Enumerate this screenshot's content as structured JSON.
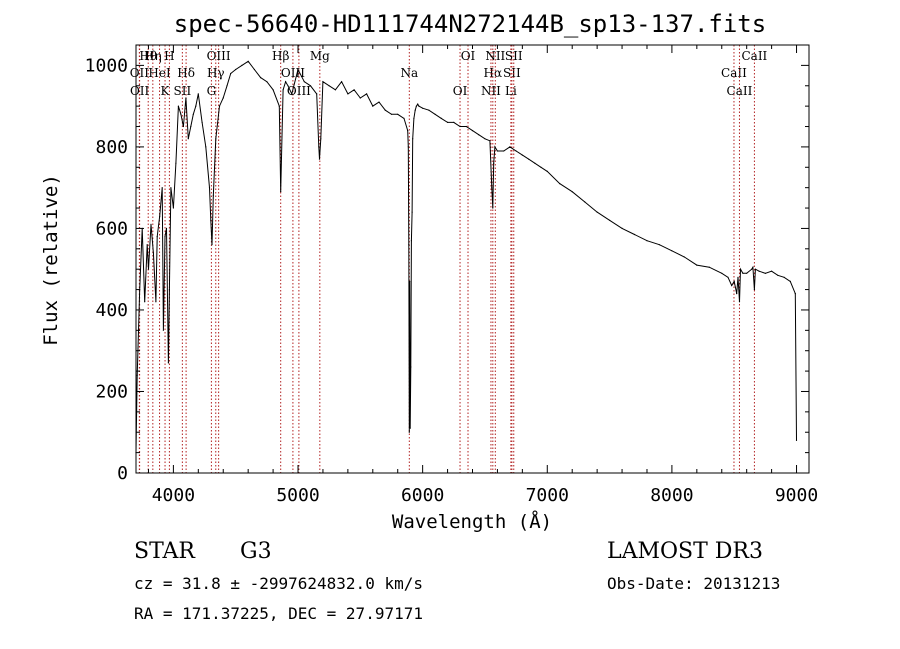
{
  "chart_data": {
    "type": "line",
    "title": "spec-56640-HD111744N272144B_sp13-137.fits",
    "xlabel": "Wavelength (Å)",
    "ylabel": "Flux (relative)",
    "xlim": [
      3700,
      9100
    ],
    "ylim": [
      0,
      1050
    ],
    "xticks": [
      4000,
      5000,
      6000,
      7000,
      8000,
      9000
    ],
    "yticks": [
      0,
      200,
      400,
      600,
      800,
      1000
    ],
    "grid": false,
    "series": [
      {
        "name": "flux",
        "x": [
          3700,
          3710,
          3730,
          3750,
          3770,
          3790,
          3800,
          3820,
          3840,
          3860,
          3870,
          3890,
          3910,
          3920,
          3933,
          3945,
          3960,
          3968,
          3980,
          4000,
          4020,
          4040,
          4060,
          4080,
          4100,
          4120,
          4140,
          4160,
          4180,
          4200,
          4230,
          4260,
          4290,
          4300,
          4310,
          4320,
          4340,
          4370,
          4400,
          4430,
          4460,
          4500,
          4550,
          4600,
          4650,
          4700,
          4750,
          4800,
          4850,
          4861,
          4880,
          4900,
          4920,
          4950,
          5000,
          5050,
          5100,
          5150,
          5167,
          5172,
          5183,
          5200,
          5250,
          5300,
          5350,
          5400,
          5450,
          5500,
          5550,
          5600,
          5650,
          5700,
          5750,
          5800,
          5850,
          5880,
          5885,
          5889,
          5893,
          5896,
          5900,
          5905,
          5910,
          5915,
          5920,
          5930,
          5940,
          5950,
          5960,
          5970,
          6000,
          6050,
          6100,
          6150,
          6200,
          6250,
          6300,
          6350,
          6400,
          6450,
          6500,
          6540,
          6555,
          6563,
          6570,
          6580,
          6600,
          6650,
          6700,
          6750,
          6800,
          6850,
          6900,
          6950,
          7000,
          7100,
          7200,
          7300,
          7400,
          7500,
          7600,
          7700,
          7800,
          7900,
          8000,
          8100,
          8200,
          8300,
          8400,
          8450,
          8480,
          8500,
          8520,
          8530,
          8542,
          8550,
          8570,
          8600,
          8640,
          8650,
          8662,
          8670,
          8700,
          8750,
          8800,
          8850,
          8900,
          8950,
          8990,
          9000
        ],
        "values": [
          50,
          240,
          450,
          600,
          420,
          560,
          500,
          610,
          540,
          420,
          580,
          630,
          700,
          350,
          580,
          600,
          270,
          450,
          700,
          650,
          760,
          900,
          880,
          850,
          920,
          820,
          850,
          880,
          900,
          930,
          860,
          800,
          700,
          620,
          560,
          680,
          820,
          900,
          920,
          950,
          980,
          990,
          1000,
          1010,
          990,
          970,
          960,
          940,
          900,
          690,
          940,
          960,
          950,
          930,
          990,
          960,
          950,
          930,
          800,
          770,
          820,
          960,
          950,
          940,
          960,
          930,
          940,
          920,
          930,
          900,
          910,
          890,
          880,
          880,
          870,
          840,
          800,
          560,
          100,
          470,
          110,
          260,
          570,
          640,
          820,
          870,
          890,
          900,
          905,
          900,
          895,
          890,
          880,
          870,
          860,
          860,
          850,
          850,
          840,
          830,
          820,
          815,
          700,
          650,
          760,
          800,
          790,
          790,
          800,
          790,
          780,
          770,
          760,
          750,
          740,
          710,
          690,
          665,
          640,
          620,
          600,
          585,
          570,
          560,
          545,
          530,
          510,
          505,
          490,
          480,
          460,
          470,
          440,
          480,
          420,
          500,
          490,
          490,
          500,
          505,
          450,
          500,
          495,
          490,
          495,
          485,
          480,
          470,
          440,
          80
        ]
      }
    ],
    "line_markers": [
      {
        "label": "Hθ",
        "wavelength": 3798
      },
      {
        "label": "OII",
        "wavelength": 3727
      },
      {
        "label": "OII",
        "wavelength": 3729
      },
      {
        "label": "Hη",
        "wavelength": 3835
      },
      {
        "label": "HeI",
        "wavelength": 3889
      },
      {
        "label": "K",
        "wavelength": 3933
      },
      {
        "label": "H",
        "wavelength": 3968
      },
      {
        "label": "Hδ",
        "wavelength": 4102
      },
      {
        "label": "SII",
        "wavelength": 4072
      },
      {
        "label": "OIII",
        "wavelength": 4363
      },
      {
        "label": "Hγ",
        "wavelength": 4340
      },
      {
        "label": "G",
        "wavelength": 4305
      },
      {
        "label": "Hβ",
        "wavelength": 4861
      },
      {
        "label": "OIII",
        "wavelength": 4959
      },
      {
        "label": "OIII",
        "wavelength": 5007
      },
      {
        "label": "Mg",
        "wavelength": 5175
      },
      {
        "label": "Na",
        "wavelength": 5893
      },
      {
        "label": "OI",
        "wavelength": 6300
      },
      {
        "label": "OI",
        "wavelength": 6364
      },
      {
        "label": "Hα",
        "wavelength": 6563
      },
      {
        "label": "NII",
        "wavelength": 6548
      },
      {
        "label": "NII",
        "wavelength": 6583
      },
      {
        "label": "SII",
        "wavelength": 6716
      },
      {
        "label": "Li",
        "wavelength": 6708
      },
      {
        "label": "SII",
        "wavelength": 6731
      },
      {
        "label": "CaII",
        "wavelength": 8498
      },
      {
        "label": "CaII",
        "wavelength": 8542
      },
      {
        "label": "CaII",
        "wavelength": 8662
      }
    ]
  },
  "info": {
    "object_class": "STAR",
    "subclass": "G3",
    "survey": "LAMOST DR3",
    "cz_line": "cz = 31.8 ± -2997624832.0 km/s",
    "obs_date_line": "Obs-Date: 20131213",
    "radec_line": "RA = 171.37225, DEC =  27.97171"
  },
  "colors": {
    "spectrum": "#000000",
    "marker_line": "#b22222",
    "axis": "#000000",
    "background": "#ffffff"
  }
}
